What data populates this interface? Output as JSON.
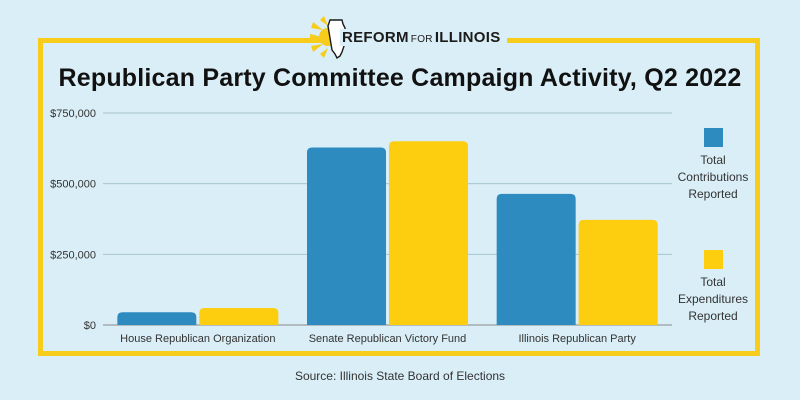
{
  "logo": {
    "text_reform": "REFORM",
    "text_for": "FOR",
    "text_illinois": "ILLINOIS"
  },
  "source": "Source: Illinois State Board of Elections",
  "colors": {
    "background": "#d9eef6",
    "frame": "#f7cc1a",
    "contributions": "#2e8bc0",
    "expenditures": "#fdcd0f"
  },
  "chart_data": {
    "type": "bar",
    "title": "Republican Party Committee Campaign Activity, Q2 2022",
    "categories": [
      "House Republican Organization",
      "Senate Republican Victory Fund",
      "Illinois Republican Party"
    ],
    "series": [
      {
        "name": "Total Contributions Reported",
        "values": [
          45000,
          628000,
          464000
        ]
      },
      {
        "name": "Total Expenditures Reported",
        "values": [
          60000,
          650000,
          372000
        ]
      }
    ],
    "ylim": [
      0,
      750000
    ],
    "yticks": [
      0,
      250000,
      500000,
      750000
    ],
    "ytick_labels": [
      "$0",
      "$250,000",
      "$500,000",
      "$750,000"
    ],
    "xlabel": "",
    "ylabel": "",
    "grid": true,
    "legend_position": "right"
  }
}
